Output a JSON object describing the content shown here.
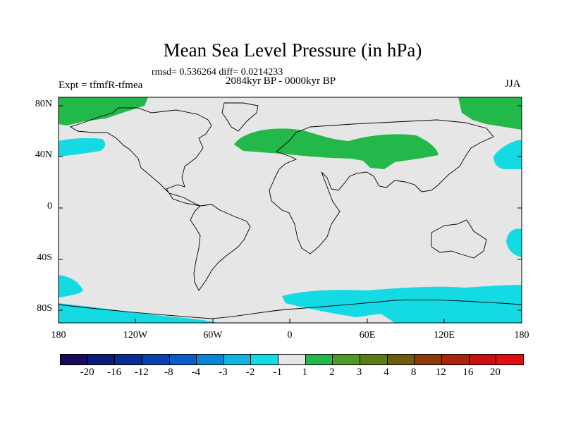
{
  "title": "Mean Sea Level Pressure (in hPa)",
  "stats": "rmsd= 0.536264  diff= 0.0214233",
  "period": "2084kyr BP - 0000kyr BP",
  "experiment": "Expt = tfmfR-tfmea",
  "season": "JJA",
  "lat_labels": [
    "80N",
    "40N",
    "0",
    "40S",
    "80S"
  ],
  "lon_labels": [
    "180",
    "120W",
    "60W",
    "0",
    "60E",
    "120E",
    "180"
  ],
  "colorbar": {
    "labels": [
      "-20",
      "-16",
      "-12",
      "-8",
      "-4",
      "-3",
      "-2",
      "-1",
      "1",
      "2",
      "3",
      "4",
      "8",
      "12",
      "16",
      "20"
    ],
    "colors": [
      "#1a0a5c",
      "#0d1a7a",
      "#0a2a95",
      "#0a3fae",
      "#0a5cc8",
      "#0a85d6",
      "#12b4e0",
      "#14dbe3",
      "#e6e6e6",
      "#22b84a",
      "#4d9a2a",
      "#5a7d18",
      "#6b5c10",
      "#8a3a08",
      "#a8240a",
      "#c81010",
      "#e01010"
    ]
  },
  "map": {
    "background_color": "#e6e6e6",
    "positive_color": "#22b84a",
    "negative_color": "#14dbe3"
  }
}
